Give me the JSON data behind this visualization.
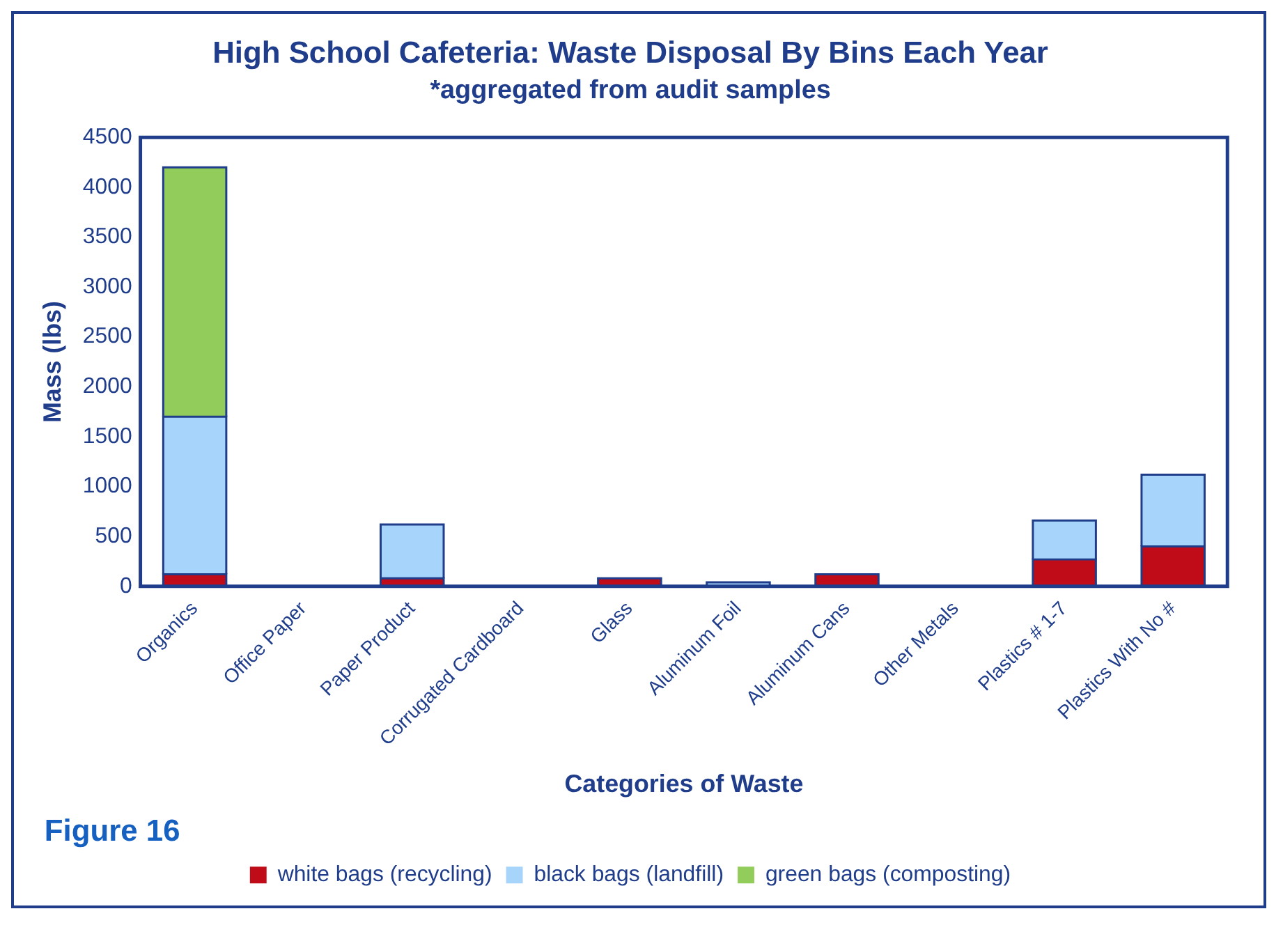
{
  "chart_data": {
    "type": "bar",
    "title": "High School Cafeteria: Waste Disposal By Bins Each Year",
    "subtitle": "*aggregated from audit samples",
    "xlabel": "Categories of Waste",
    "ylabel": "Mass (lbs)",
    "categories": [
      "Organics",
      "Office Paper",
      "Paper Product",
      "Corrugated Cardboard",
      "Glass",
      "Aluminum Foil",
      "Aluminum Cans",
      "Other Metals",
      "Plastics # 1-7",
      "Plastics With No #"
    ],
    "stacked": true,
    "series": [
      {
        "name": "white bags (recycling)",
        "color": "#c00c18",
        "values": [
          120,
          null,
          80,
          null,
          80,
          null,
          120,
          null,
          270,
          400
        ]
      },
      {
        "name": "black bags (landfill)",
        "color": "#a6d4fa",
        "values": [
          1580,
          null,
          540,
          null,
          null,
          40,
          null,
          null,
          390,
          720
        ]
      },
      {
        "name": "green bags (composting)",
        "color": "#92cc5a",
        "values": [
          2500,
          null,
          null,
          null,
          null,
          null,
          null,
          null,
          null,
          null
        ]
      }
    ],
    "ylim": [
      0,
      4500
    ],
    "yticks": [
      0,
      500,
      1000,
      1500,
      2000,
      2500,
      3000,
      3500,
      4000,
      4500
    ],
    "grid": false,
    "legend": "bottom",
    "annotations": [
      "Figure 16"
    ]
  }
}
